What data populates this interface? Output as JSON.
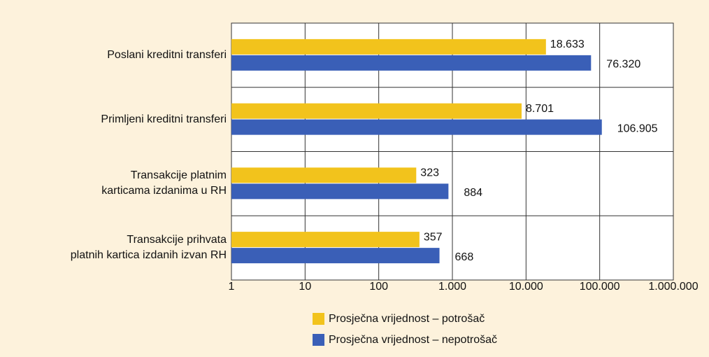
{
  "chart_data": {
    "type": "bar",
    "orientation": "horizontal",
    "categories": [
      "Poslani kreditni transferi",
      "Primljeni kreditni transferi",
      "Transakcije platnim\nkarticama izdanima u RH",
      "Transakcije prihvata\nplatnih kartica izdanih izvan RH"
    ],
    "series": [
      {
        "name": "Prosječna vrijednost  – potrošač",
        "color": "#f2c31c",
        "values": [
          18633,
          8701,
          323,
          357
        ],
        "value_labels": [
          "18.633",
          "8.701",
          "323",
          "357"
        ]
      },
      {
        "name": "Prosječna vrijednost – nepotrošač",
        "color": "#3a5fb7",
        "values": [
          76320,
          106905,
          884,
          668
        ],
        "value_labels": [
          "76.320",
          "106.905",
          "884",
          "668"
        ]
      }
    ],
    "xscale": "log",
    "xlim": [
      1,
      1000000
    ],
    "xticks": [
      1,
      10,
      100,
      {
        "value": 1000,
        "label": "1.000"
      },
      {
        "value": 10000,
        "label": "10.000"
      },
      {
        "value": 100000,
        "label": "100.000"
      },
      {
        "value": 1000000,
        "label": "1.000.000"
      }
    ],
    "grid": true,
    "legend": "bottom"
  }
}
